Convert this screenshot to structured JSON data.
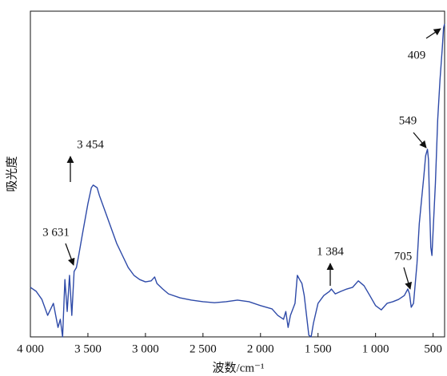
{
  "chart_data": {
    "type": "line",
    "xlabel": "波数/cm⁻¹",
    "ylabel": "吸光度",
    "x": [
      4000,
      3950,
      3900,
      3850,
      3800,
      3760,
      3740,
      3720,
      3700,
      3680,
      3660,
      3640,
      3620,
      3600,
      3580,
      3550,
      3500,
      3470,
      3454,
      3420,
      3400,
      3350,
      3300,
      3250,
      3200,
      3150,
      3100,
      3050,
      3000,
      2950,
      2920,
      2900,
      2850,
      2800,
      2700,
      2600,
      2500,
      2400,
      2300,
      2200,
      2100,
      2000,
      1900,
      1850,
      1800,
      1780,
      1760,
      1740,
      1700,
      1680,
      1660,
      1640,
      1620,
      1600,
      1580,
      1560,
      1540,
      1500,
      1450,
      1400,
      1384,
      1350,
      1300,
      1250,
      1200,
      1150,
      1100,
      1050,
      1000,
      950,
      900,
      850,
      800,
      750,
      720,
      705,
      690,
      670,
      640,
      620,
      600,
      580,
      565,
      549,
      540,
      530,
      520,
      510,
      500,
      480,
      460,
      440,
      420,
      409,
      400
    ],
    "values": [
      15.2,
      14.0,
      11.5,
      6.6,
      10.3,
      2.9,
      5.4,
      0,
      17.6,
      7.8,
      18.9,
      6.6,
      20.1,
      21.3,
      25.0,
      31.1,
      40.9,
      45.8,
      46.6,
      45.8,
      43.4,
      38.5,
      33.6,
      28.7,
      25.0,
      21.3,
      18.9,
      17.6,
      16.9,
      17.2,
      18.4,
      16.4,
      14.7,
      13.2,
      12.0,
      11.3,
      10.8,
      10.5,
      10.8,
      11.3,
      10.8,
      9.6,
      8.6,
      6.6,
      5.4,
      7.8,
      2.9,
      6.6,
      10.3,
      18.9,
      17.6,
      16.4,
      12.7,
      6.6,
      0.5,
      0,
      4.2,
      10.3,
      12.7,
      14.0,
      14.7,
      13.2,
      14.0,
      14.7,
      15.2,
      17.2,
      15.7,
      12.7,
      9.6,
      8.3,
      10.3,
      10.8,
      11.5,
      12.7,
      14.7,
      13.2,
      9.1,
      10.3,
      22.5,
      34.8,
      42.2,
      49.5,
      55.6,
      57.6,
      54.4,
      39.7,
      27.5,
      25.0,
      32.4,
      47.1,
      66.7,
      78.9,
      88.7,
      94.9,
      96.1
    ],
    "color": "#2e4aa8",
    "xlim": [
      4000,
      400
    ],
    "ylim": [
      0,
      100
    ],
    "xticks": [
      {
        "value": 4000,
        "label": "4 000"
      },
      {
        "value": 3500,
        "label": "3 500"
      },
      {
        "value": 3000,
        "label": "3 000"
      },
      {
        "value": 2500,
        "label": "2 500"
      },
      {
        "value": 2000,
        "label": "2 000"
      },
      {
        "value": 1500,
        "label": "1 500"
      },
      {
        "value": 1000,
        "label": "1 000"
      },
      500
    ],
    "annotations": [
      "3 631",
      "3 454",
      "1 384",
      "705",
      "549",
      "409"
    ]
  }
}
